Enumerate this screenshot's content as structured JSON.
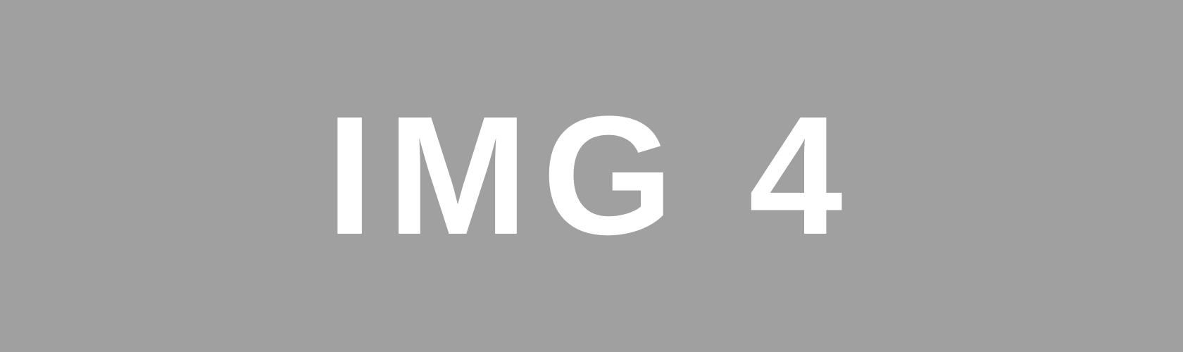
{
  "placeholder": {
    "label": "IMG 4",
    "background_color": "#a0a0a0",
    "text_color": "#ffffff"
  }
}
